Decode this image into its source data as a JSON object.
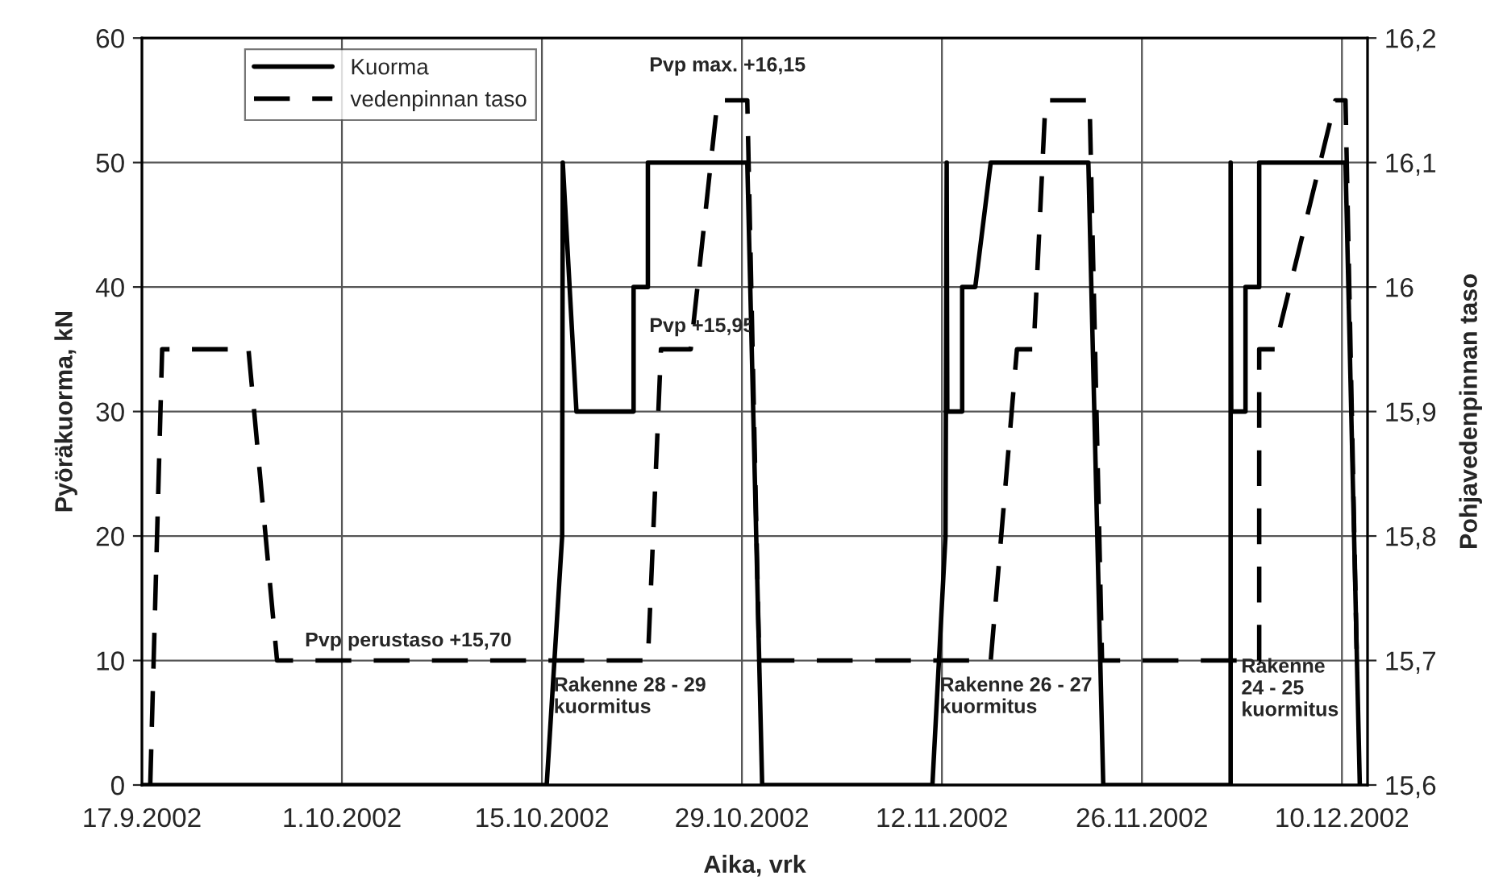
{
  "chart_data": {
    "type": "line",
    "xlabel": "Aika, vrk",
    "ylabel": "Pyöräkuorma, kN",
    "y2label": "Pohjavedenpinnan taso",
    "xlim": [
      "2002-09-17",
      "2002-12-11T19:00"
    ],
    "xticks": [
      {
        "value": "2002-09-17",
        "label": "17.9.2002"
      },
      {
        "value": "2002-10-01",
        "label": "1.10.2002"
      },
      {
        "value": "2002-10-15",
        "label": "15.10.2002"
      },
      {
        "value": "2002-10-29",
        "label": "29.10.2002"
      },
      {
        "value": "2002-11-12",
        "label": "12.11.2002"
      },
      {
        "value": "2002-11-26",
        "label": "26.11.2002"
      },
      {
        "value": "2002-12-10",
        "label": "10.12.2002"
      }
    ],
    "ylim": [
      0,
      60
    ],
    "yticks": [
      0,
      10,
      20,
      30,
      40,
      50,
      60
    ],
    "y2lim": [
      15.6,
      16.2
    ],
    "y2ticks": [
      {
        "value": 15.6,
        "label": "15,6"
      },
      {
        "value": 15.7,
        "label": "15,7"
      },
      {
        "value": 15.8,
        "label": "15,8"
      },
      {
        "value": 15.9,
        "label": "15,9"
      },
      16,
      {
        "value": 16.1,
        "label": "16,1"
      },
      {
        "value": 16.2,
        "label": "16,2"
      }
    ],
    "grid": true,
    "legend": "top left",
    "marker": "none",
    "series": [
      {
        "name": "Kuorma",
        "color": "#000000",
        "line_style": "solid",
        "x": [
          "2002-09-17",
          "2002-10-15T08:00",
          "2002-10-16T10:00",
          "2002-10-16T11:00",
          "2002-10-17T10:00",
          "2002-10-21T10:00",
          "2002-10-21T10:00",
          "2002-10-22T10:00",
          "2002-10-22T10:00",
          "2002-10-29T09:00",
          "2002-10-30T10:00",
          "2002-11-11T08:00",
          "2002-11-12T06:00",
          "2002-11-12T08:00",
          "2002-11-12T09:00",
          "2002-11-13T10:00",
          "2002-11-13T10:00",
          "2002-11-14T08:00",
          "2002-11-15T10:00",
          "2002-11-22T06:00",
          "2002-11-23T07:00",
          "2002-12-02T05:00",
          "2002-12-02T05:00",
          "2002-12-02T06:00",
          "2002-12-03T06:00",
          "2002-12-03T06:00",
          "2002-12-04T05:00",
          "2002-12-04T05:00",
          "2002-12-10T06:00",
          "2002-12-11T06:00"
        ],
        "values": [
          0,
          0,
          20,
          50,
          30,
          30,
          40,
          40,
          50,
          50,
          0,
          0,
          20,
          50,
          30,
          30,
          40,
          40,
          50,
          50,
          0,
          0,
          50,
          30,
          30,
          40,
          40,
          50,
          50,
          0
        ]
      },
      {
        "name": "vedenpinnan taso",
        "color": "#000000",
        "line_style": "dashed",
        "axis": "y2",
        "x": [
          "2002-09-17T14:00",
          "2002-09-18T10:00",
          "2002-09-24T11:00",
          "2002-09-26T11:00",
          "2002-10-22T10:00",
          "2002-10-23T08:00",
          "2002-10-25T10:00",
          "2002-10-27T07:00",
          "2002-10-29T09:00",
          "2002-10-30T05:00",
          "2002-11-15T10:00",
          "2002-11-17T06:00",
          "2002-11-18T10:00",
          "2002-11-19T06:00",
          "2002-11-22T08:00",
          "2002-11-23T05:00",
          "2002-12-04T05:00",
          "2002-12-04T05:00",
          "2002-12-05T07:00",
          "2002-12-09T13:00",
          "2002-12-10T06:00",
          "2002-12-11T01:00"
        ],
        "values": [
          15.6,
          15.95,
          15.95,
          15.7,
          15.7,
          15.95,
          15.95,
          16.15,
          16.15,
          15.7,
          15.7,
          15.95,
          15.95,
          16.15,
          16.15,
          15.7,
          15.7,
          15.95,
          15.95,
          16.15,
          16.15,
          15.7
        ]
      }
    ],
    "annotations": [
      "Pvp perustaso +15,70",
      "Pvp +15,95",
      "Pvp max. +16,15",
      "Rakenne 28 - 29\nkuormitus",
      "Rakenne 26 - 27\nkuormitus",
      "Rakenne\n24 - 25\nkuormitus"
    ]
  }
}
